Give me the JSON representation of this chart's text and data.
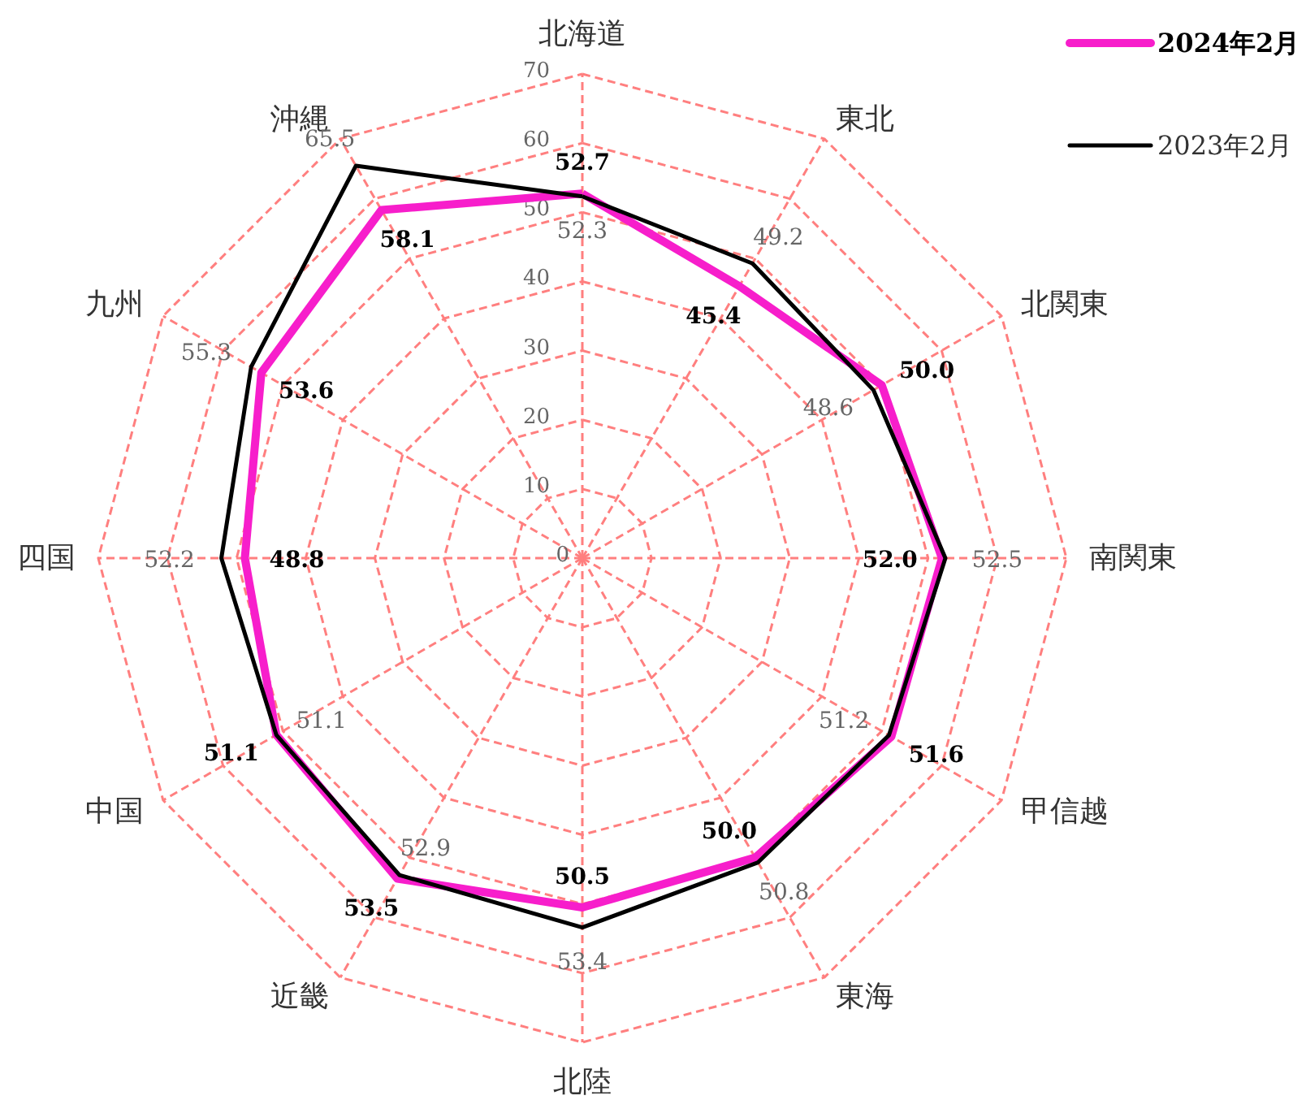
{
  "chart_data": {
    "type": "radar",
    "categories": [
      "北海道",
      "東北",
      "北関東",
      "南関東",
      "甲信越",
      "東海",
      "北陸",
      "近畿",
      "中国",
      "四国",
      "九州",
      "沖縄"
    ],
    "series": [
      {
        "name": "2024年2月",
        "color": "#f71ecb",
        "values": [
          52.7,
          45.4,
          50.0,
          52.0,
          51.6,
          50.0,
          50.5,
          53.5,
          51.1,
          48.8,
          53.6,
          58.1
        ],
        "value_labels": [
          "52.7",
          "45.4",
          "50.0",
          "52.0",
          "51.6",
          "50.0",
          "50.5",
          "53.5",
          "51.1",
          "48.8",
          "53.6",
          "58.1"
        ]
      },
      {
        "name": "2023年2月",
        "color": "#000000",
        "values": [
          52.3,
          49.2,
          48.6,
          52.5,
          51.2,
          50.8,
          53.4,
          52.9,
          51.1,
          52.2,
          55.3,
          65.5
        ],
        "value_labels": [
          "52.3",
          "49.2",
          "48.6",
          "52.5",
          "51.2",
          "50.8",
          "53.4",
          "52.9",
          "51.1",
          "52.2",
          "55.3",
          "65.5"
        ]
      }
    ],
    "ylim": [
      0,
      70
    ],
    "yticks": [
      0,
      10,
      20,
      30,
      40,
      50,
      60,
      70
    ],
    "grid": true,
    "legend": "top right"
  }
}
